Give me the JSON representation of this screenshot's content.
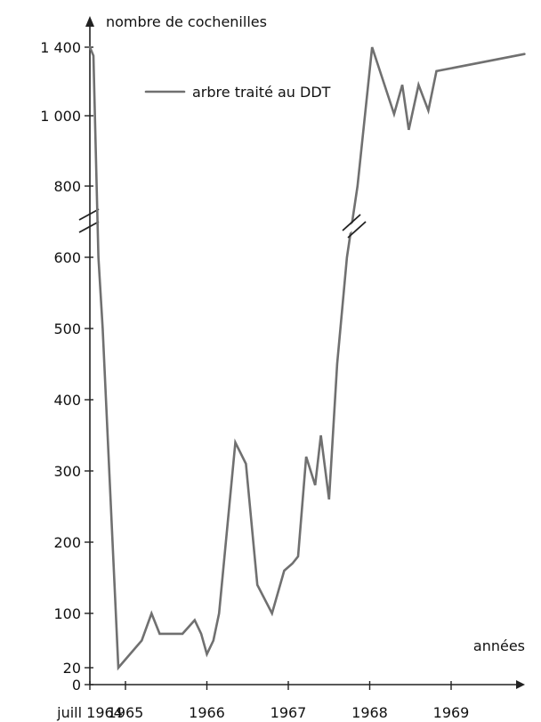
{
  "chart_data": {
    "type": "line",
    "ylabel": "nombre de cochenilles",
    "xlabel": "années",
    "y_ticks": [
      {
        "value": 0,
        "label": "0"
      },
      {
        "value": 20,
        "label": "20"
      },
      {
        "value": 100,
        "label": "100"
      },
      {
        "value": 200,
        "label": "200"
      },
      {
        "value": 300,
        "label": "300"
      },
      {
        "value": 400,
        "label": "400"
      },
      {
        "value": 500,
        "label": "500"
      },
      {
        "value": 600,
        "label": "600"
      },
      {
        "value": 800,
        "label": "800"
      },
      {
        "value": 1000,
        "label": "1 000"
      },
      {
        "value": 1400,
        "label": "1 400"
      }
    ],
    "x_ticks": [
      {
        "value": 1964.5,
        "label": "juill 1964"
      },
      {
        "value": 1965,
        "label": "1965"
      },
      {
        "value": 1966,
        "label": "1966"
      },
      {
        "value": 1967,
        "label": "1967"
      },
      {
        "value": 1968,
        "label": "1968"
      },
      {
        "value": 1969,
        "label": "1969"
      }
    ],
    "xlim": [
      1964.5,
      1970.1
    ],
    "y_axis_break": {
      "from": 600,
      "to": 800
    },
    "legend_position": "top-center",
    "series": [
      {
        "name": "arbre traité au DDT",
        "color": "#707070",
        "points": [
          [
            1964.5,
            1400
          ],
          [
            1964.55,
            1350
          ],
          [
            1964.62,
            600
          ],
          [
            1964.68,
            500
          ],
          [
            1964.9,
            20
          ],
          [
            1965.2,
            60
          ],
          [
            1965.32,
            100
          ],
          [
            1965.42,
            70
          ],
          [
            1965.55,
            70
          ],
          [
            1965.7,
            70
          ],
          [
            1965.85,
            90
          ],
          [
            1965.93,
            70
          ],
          [
            1966.0,
            40
          ],
          [
            1966.08,
            60
          ],
          [
            1966.15,
            100
          ],
          [
            1966.35,
            340
          ],
          [
            1966.48,
            310
          ],
          [
            1966.62,
            140
          ],
          [
            1966.8,
            100
          ],
          [
            1966.95,
            160
          ],
          [
            1967.05,
            170
          ],
          [
            1967.12,
            180
          ],
          [
            1967.22,
            320
          ],
          [
            1967.33,
            280
          ],
          [
            1967.4,
            350
          ],
          [
            1967.5,
            260
          ],
          [
            1967.6,
            450
          ],
          [
            1967.72,
            600
          ],
          [
            1967.85,
            800
          ],
          [
            1968.03,
            1400
          ],
          [
            1968.3,
            1010
          ],
          [
            1968.4,
            1180
          ],
          [
            1968.48,
            960
          ],
          [
            1968.6,
            1180
          ],
          [
            1968.72,
            1030
          ],
          [
            1968.82,
            1260
          ],
          [
            1969.9,
            1360
          ]
        ]
      }
    ]
  }
}
